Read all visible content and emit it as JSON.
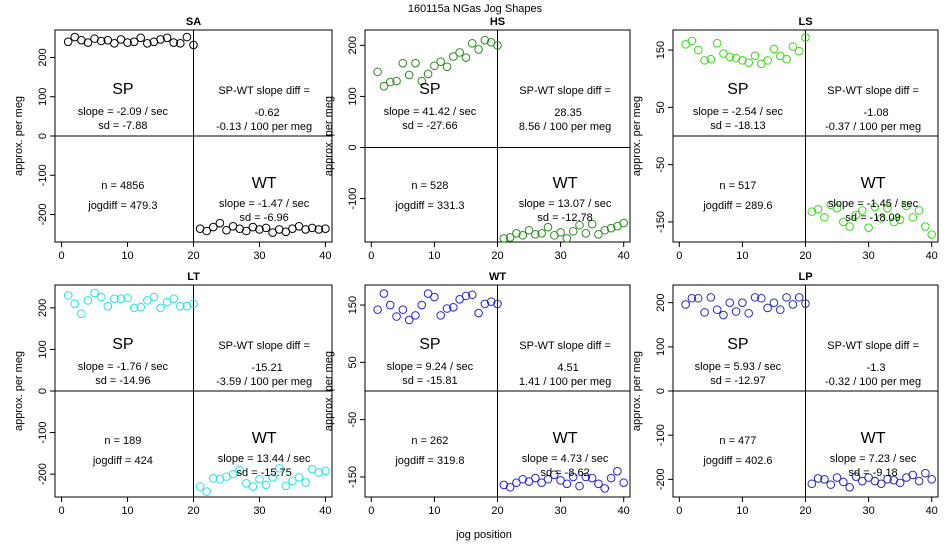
{
  "title": "160115a   NGas Jog Shapes",
  "xlabel": "jog position",
  "ylabel": "approx. per meg",
  "chart_data": [
    {
      "type": "scatter",
      "title": "SA",
      "color": "#000000",
      "xlim": [
        -1,
        41
      ],
      "ylim": [
        -270,
        270
      ],
      "yticks": [
        -200,
        -100,
        0,
        100,
        200
      ],
      "xticks": [
        0,
        10,
        20,
        30,
        40
      ],
      "x": [
        1,
        2,
        3,
        4,
        5,
        6,
        7,
        8,
        9,
        10,
        11,
        12,
        13,
        14,
        15,
        16,
        17,
        18,
        19,
        20,
        21,
        22,
        23,
        24,
        25,
        26,
        27,
        28,
        29,
        30,
        31,
        32,
        33,
        34,
        35,
        36,
        37,
        38,
        39,
        40
      ],
      "values": [
        240,
        252,
        244,
        238,
        248,
        242,
        244,
        236,
        246,
        238,
        240,
        250,
        236,
        240,
        246,
        250,
        238,
        236,
        252,
        232,
        -236,
        -242,
        -232,
        -222,
        -240,
        -230,
        -236,
        -242,
        -232,
        -238,
        -234,
        -246,
        -238,
        -244,
        -236,
        -230,
        -238,
        -234,
        -238,
        -236
      ],
      "text": {
        "sp": "SP",
        "sp_slope": "slope = -2.09 / sec",
        "sp_sd": "sd = -7.88",
        "diff_label": "SP-WT slope diff =",
        "diff_value": "-0.62",
        "diff_rate": "-0.13 / 100 per meg",
        "n": "n = 4856",
        "jogdiff": "jogdiff = 479.3",
        "wt": "WT",
        "wt_slope": "slope = -1.47 / sec",
        "wt_sd": "sd = -6.96"
      }
    },
    {
      "type": "scatter",
      "title": "HS",
      "color": "#2e8b22",
      "xlim": [
        -1,
        41
      ],
      "ylim": [
        -185,
        230
      ],
      "yticks": [
        -100,
        0,
        100,
        200
      ],
      "xticks": [
        0,
        10,
        20,
        30,
        40
      ],
      "x": [
        1,
        2,
        3,
        4,
        5,
        6,
        7,
        8,
        9,
        10,
        11,
        12,
        13,
        14,
        15,
        16,
        17,
        18,
        19,
        20,
        21,
        22,
        23,
        24,
        25,
        26,
        27,
        28,
        29,
        30,
        31,
        32,
        33,
        34,
        35,
        36,
        37,
        38,
        39,
        40
      ],
      "values": [
        148,
        120,
        128,
        130,
        165,
        142,
        165,
        130,
        144,
        160,
        168,
        158,
        178,
        186,
        176,
        204,
        192,
        210,
        206,
        200,
        -178,
        -176,
        -168,
        -172,
        -162,
        -170,
        -168,
        -156,
        -172,
        -166,
        -178,
        -164,
        -152,
        -168,
        -150,
        -170,
        -162,
        -158,
        -154,
        -148
      ],
      "text": {
        "sp": "SP",
        "sp_slope": "slope = 41.42 / sec",
        "sp_sd": "sd = -27.66",
        "diff_label": "SP-WT slope diff =",
        "diff_value": "28.35",
        "diff_rate": "8.56 / 100 per meg",
        "n": "n = 528",
        "jogdiff": "jogdiff = 331.3",
        "wt": "WT",
        "wt_slope": "slope = 13.07 / sec",
        "wt_sd": "sd = -12.78"
      }
    },
    {
      "type": "scatter",
      "title": "LS",
      "color": "#33dd11",
      "xlim": [
        -1,
        41
      ],
      "ylim": [
        -185,
        185
      ],
      "yticks": [
        -150,
        -50,
        50,
        150
      ],
      "xticks": [
        0,
        10,
        20,
        30,
        40
      ],
      "x": [
        1,
        2,
        3,
        4,
        5,
        6,
        7,
        8,
        9,
        10,
        11,
        12,
        13,
        14,
        15,
        16,
        17,
        18,
        19,
        20,
        21,
        22,
        23,
        24,
        25,
        26,
        27,
        28,
        29,
        30,
        31,
        32,
        33,
        34,
        35,
        36,
        37,
        38,
        39,
        40
      ],
      "values": [
        160,
        166,
        150,
        132,
        134,
        162,
        144,
        138,
        136,
        132,
        128,
        140,
        126,
        132,
        152,
        140,
        134,
        156,
        148,
        172,
        -132,
        -128,
        -142,
        -120,
        -126,
        -150,
        -158,
        -138,
        -130,
        -160,
        -124,
        -144,
        -126,
        -150,
        -146,
        -122,
        -142,
        -130,
        -158,
        -172
      ],
      "text": {
        "sp": "SP",
        "sp_slope": "slope = -2.54 / sec",
        "sp_sd": "sd = -18.13",
        "diff_label": "SP-WT slope diff =",
        "diff_value": "-1.08",
        "diff_rate": "-0.37 / 100 per meg",
        "n": "n = 517",
        "jogdiff": "jogdiff = 289.6",
        "wt": "WT",
        "wt_slope": "slope = -1.45 / sec",
        "wt_sd": "sd = -18.09"
      }
    },
    {
      "type": "scatter",
      "title": "LT",
      "color": "#22e5e5",
      "xlim": [
        -1,
        41
      ],
      "ylim": [
        -255,
        255
      ],
      "yticks": [
        -200,
        -100,
        0,
        100,
        200
      ],
      "xticks": [
        0,
        10,
        20,
        30,
        40
      ],
      "x": [
        1,
        2,
        3,
        4,
        5,
        6,
        7,
        8,
        9,
        10,
        11,
        12,
        13,
        14,
        15,
        16,
        17,
        18,
        19,
        20,
        21,
        22,
        23,
        24,
        25,
        26,
        27,
        28,
        29,
        30,
        31,
        32,
        33,
        34,
        35,
        36,
        37,
        38,
        39,
        40
      ],
      "values": [
        230,
        210,
        186,
        218,
        236,
        226,
        204,
        222,
        222,
        224,
        200,
        202,
        218,
        226,
        200,
        214,
        222,
        204,
        204,
        210,
        -230,
        -242,
        -210,
        -212,
        -206,
        -200,
        -190,
        -222,
        -230,
        -212,
        -226,
        -208,
        -186,
        -228,
        -216,
        -208,
        -220,
        -188,
        -196,
        -192
      ],
      "text": {
        "sp": "SP",
        "sp_slope": "slope = -1.76 / sec",
        "sp_sd": "sd = -14.96",
        "diff_label": "SP-WT slope diff =",
        "diff_value": "-15.21",
        "diff_rate": "-3.59 / 100 per meg",
        "n": "n = 189",
        "jogdiff": "jogdiff = 424",
        "wt": "WT",
        "wt_slope": "slope = 13.44 / sec",
        "wt_sd": "sd = -15.75"
      }
    },
    {
      "type": "scatter",
      "title": "WT",
      "color": "#2222dd",
      "xlim": [
        -1,
        41
      ],
      "ylim": [
        -185,
        185
      ],
      "yticks": [
        -150,
        -50,
        50,
        150
      ],
      "xticks": [
        0,
        10,
        20,
        30,
        40
      ],
      "x": [
        1,
        2,
        3,
        4,
        5,
        6,
        7,
        8,
        9,
        10,
        11,
        12,
        13,
        14,
        15,
        16,
        17,
        18,
        19,
        20,
        21,
        22,
        23,
        24,
        25,
        26,
        27,
        28,
        29,
        30,
        31,
        32,
        33,
        34,
        35,
        36,
        37,
        38,
        39,
        40
      ],
      "values": [
        142,
        170,
        150,
        130,
        142,
        124,
        132,
        150,
        170,
        164,
        132,
        144,
        146,
        160,
        166,
        168,
        136,
        152,
        156,
        152,
        -164,
        -168,
        -160,
        -154,
        -158,
        -152,
        -160,
        -154,
        -146,
        -156,
        -162,
        -150,
        -166,
        -150,
        -152,
        -162,
        -170,
        -152,
        -140,
        -160
      ],
      "text": {
        "sp": "SP",
        "sp_slope": "slope = 9.24 / sec",
        "sp_sd": "sd = -15.81",
        "diff_label": "SP-WT slope diff =",
        "diff_value": "4.51",
        "diff_rate": "1.41 / 100 per meg",
        "n": "n = 262",
        "jogdiff": "jogdiff = 319.8",
        "wt": "WT",
        "wt_slope": "slope = 4.73 / sec",
        "wt_sd": "sd = -8.62"
      }
    },
    {
      "type": "scatter",
      "title": "LP",
      "color": "#2a2ab0",
      "xlim": [
        -1,
        41
      ],
      "ylim": [
        -240,
        240
      ],
      "yticks": [
        -200,
        -100,
        0,
        100,
        200
      ],
      "xticks": [
        0,
        10,
        20,
        30,
        40
      ],
      "x": [
        1,
        2,
        3,
        4,
        5,
        6,
        7,
        8,
        9,
        10,
        11,
        12,
        13,
        14,
        15,
        16,
        17,
        18,
        19,
        20,
        21,
        22,
        23,
        24,
        25,
        26,
        27,
        28,
        29,
        30,
        31,
        32,
        33,
        34,
        35,
        36,
        37,
        38,
        39,
        40
      ],
      "values": [
        196,
        210,
        210,
        178,
        212,
        184,
        172,
        200,
        180,
        200,
        176,
        212,
        210,
        188,
        200,
        184,
        212,
        196,
        212,
        198,
        -210,
        -198,
        -200,
        -212,
        -196,
        -206,
        -218,
        -194,
        -204,
        -196,
        -204,
        -210,
        -200,
        -202,
        -208,
        -196,
        -190,
        -204,
        -186,
        -200
      ],
      "text": {
        "sp": "SP",
        "sp_slope": "slope = 5.93 / sec",
        "sp_sd": "sd = -12.97",
        "diff_label": "SP-WT slope diff =",
        "diff_value": "-1.3",
        "diff_rate": "-0.32 / 100 per meg",
        "n": "n = 477",
        "jogdiff": "jogdiff = 402.6",
        "wt": "WT",
        "wt_slope": "slope = 7.23 / sec",
        "wt_sd": "sd = -9.18"
      }
    }
  ]
}
